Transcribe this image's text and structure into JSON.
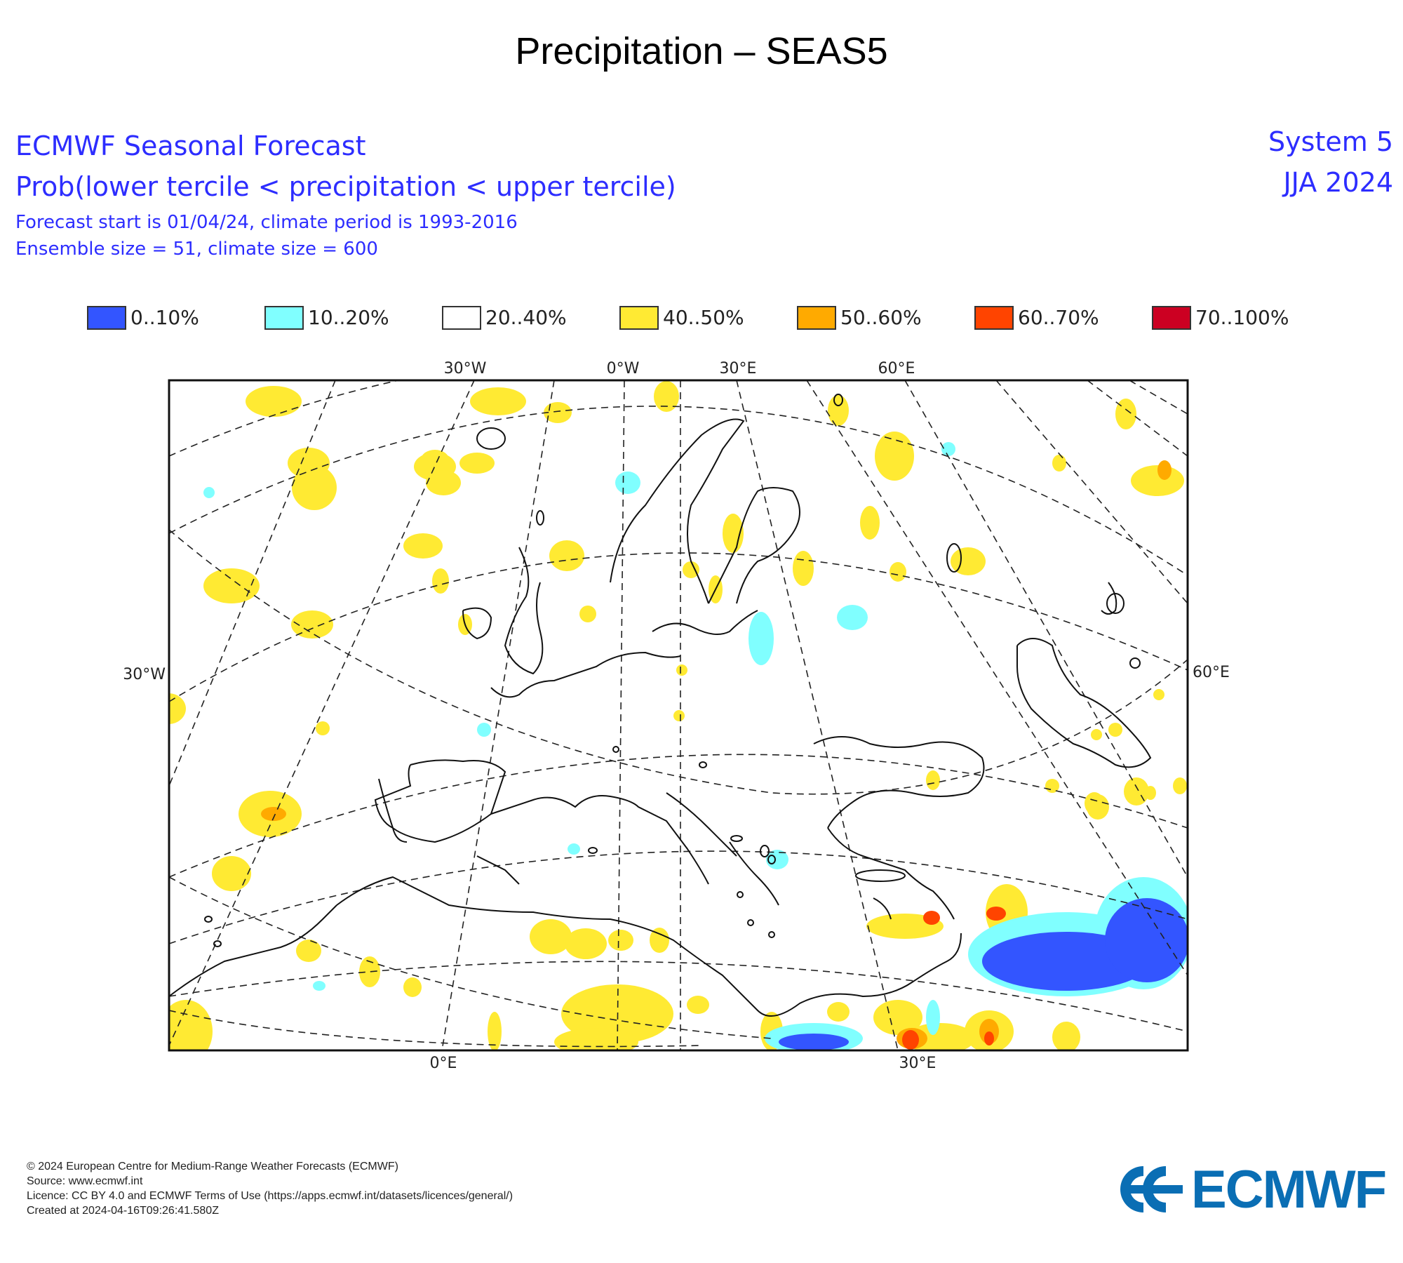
{
  "page_title": "Precipitation – SEAS5",
  "header": {
    "line1": "ECMWF Seasonal Forecast",
    "line2": "Prob(lower tercile < precipitation < upper tercile)",
    "line3": "Forecast start is 01/04/24, climate period is 1993-2016",
    "line4": "Ensemble size = 51, climate size = 600",
    "system": "System 5",
    "season": "JJA 2024"
  },
  "legend": [
    {
      "label": "0..10%",
      "color": "#3355ff"
    },
    {
      "label": "10..20%",
      "color": "#80ffff"
    },
    {
      "label": "20..40%",
      "color": "#ffffff"
    },
    {
      "label": "40..50%",
      "color": "#ffea33"
    },
    {
      "label": "50..60%",
      "color": "#ffaa00"
    },
    {
      "label": "60..70%",
      "color": "#ff4400"
    },
    {
      "label": "70..100%",
      "color": "#cc0022"
    }
  ],
  "map": {
    "projection": "polar stereographic, Europe",
    "lon_labels_top": [
      "30°W",
      "0°W",
      "30°E",
      "60°E"
    ],
    "lon_labels_bottom": [
      "0°E",
      "30°E"
    ],
    "lat_labels_left": [
      "30°W"
    ],
    "lat_labels_right": [
      "60°E"
    ]
  },
  "footer": {
    "copyright": "© 2024 European Centre for Medium-Range Weather Forecasts (ECMWF)",
    "source": "Source: www.ecmwf.int",
    "licence": "Licence: CC BY 4.0 and ECMWF Terms of Use (https://apps.ecmwf.int/datasets/licences/general/)",
    "created": "Created at 2024-04-16T09:26:41.580Z"
  },
  "logo": {
    "text": "ECMWF",
    "color": "#0a6eb4"
  }
}
